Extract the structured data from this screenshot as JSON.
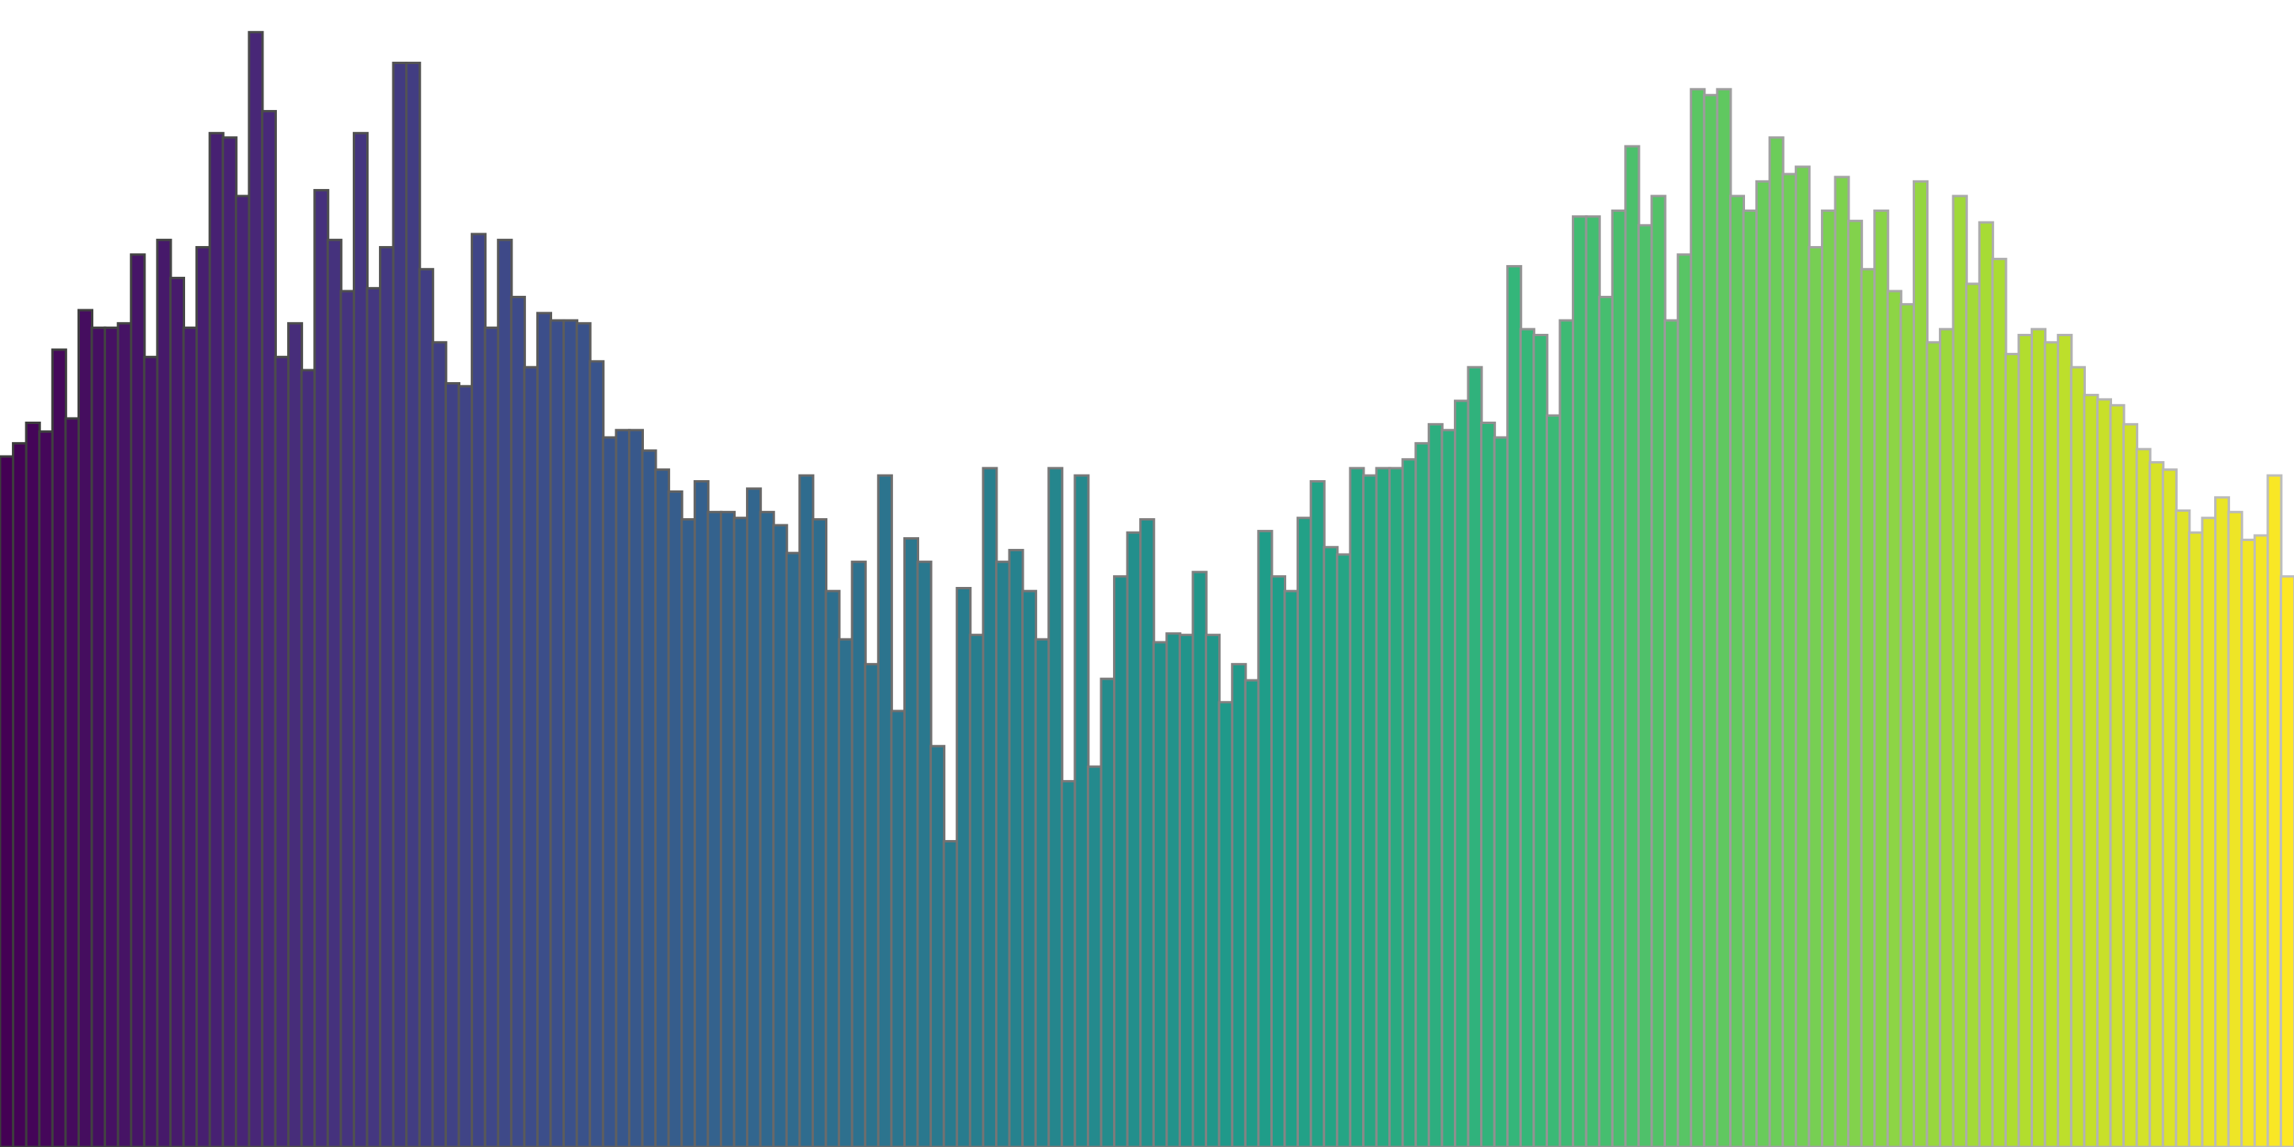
{
  "chart_data": {
    "type": "bar",
    "colormap": "viridis",
    "ylim": [
      0,
      784
    ],
    "values": [
      472,
      481,
      495,
      489,
      545,
      498,
      572,
      560,
      560,
      563,
      610,
      540,
      620,
      594,
      560,
      615,
      693,
      690,
      650,
      762,
      708,
      540,
      563,
      531,
      654,
      620,
      585,
      693,
      587,
      615,
      741,
      741,
      600,
      550,
      522,
      520,
      624,
      560,
      620,
      581,
      533,
      570,
      565,
      565,
      563,
      537,
      485,
      490,
      490,
      476,
      463,
      448,
      429,
      455,
      434,
      434,
      430,
      450,
      434,
      425,
      406,
      459,
      429,
      380,
      347,
      400,
      330,
      459,
      298,
      416,
      400,
      274,
      209,
      382,
      350,
      464,
      400,
      408,
      380,
      347,
      464,
      250,
      459,
      260,
      320,
      390,
      420,
      429,
      345,
      351,
      350,
      393,
      350,
      304,
      330,
      319,
      421,
      390,
      380,
      430,
      455,
      410,
      405,
      464,
      459,
      464,
      464,
      470,
      481,
      494,
      490,
      510,
      533,
      495,
      485,
      602,
      559,
      555,
      500,
      565,
      636,
      636,
      581,
      640,
      684,
      630,
      650,
      565,
      610,
      723,
      719,
      723,
      650,
      640,
      660,
      690,
      665,
      670,
      615,
      640,
      663,
      633,
      600,
      640,
      585,
      576,
      660,
      550,
      559,
      650,
      590,
      632,
      607,
      542,
      555,
      559,
      550,
      555,
      533,
      514,
      511,
      507,
      494,
      477,
      468,
      463,
      435,
      420,
      430,
      444,
      434,
      415,
      418,
      459,
      390
    ]
  }
}
